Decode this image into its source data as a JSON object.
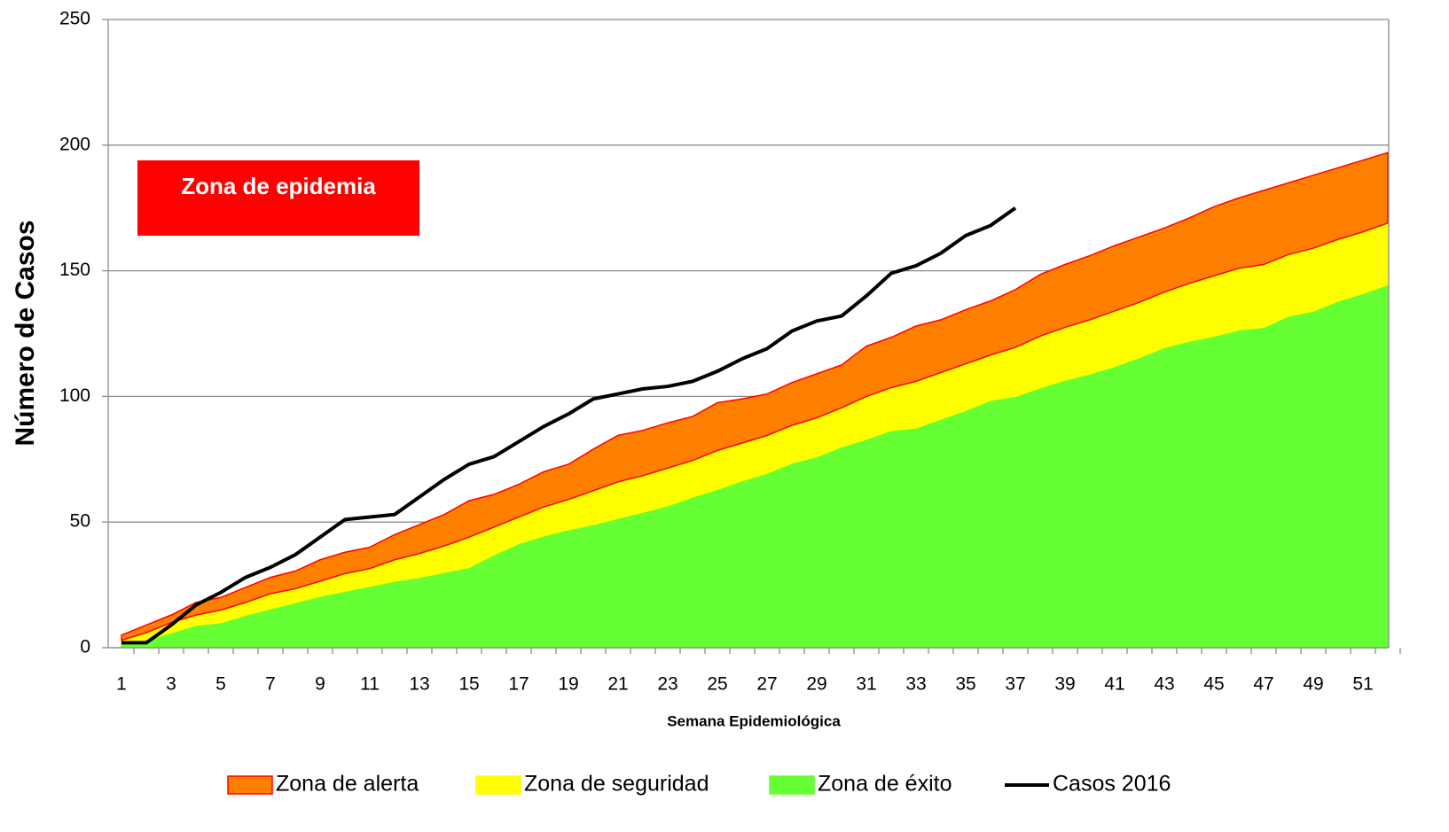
{
  "chart_data": {
    "type": "area",
    "stacked": true,
    "annotation": "Zona de epidemia",
    "annotation_color": "#ff0000",
    "xlabel": "Semana Epidemiológica",
    "ylabel": "Número de Casos",
    "ylim": [
      0,
      250
    ],
    "yticks": [
      0,
      50,
      100,
      150,
      200,
      250
    ],
    "grid": true,
    "legend": "bottom",
    "categories": [
      1,
      null,
      3,
      null,
      5,
      null,
      7,
      null,
      9,
      null,
      11,
      null,
      13,
      null,
      15,
      null,
      17,
      null,
      19,
      null,
      21,
      null,
      23,
      null,
      25,
      null,
      27,
      null,
      29,
      null,
      31,
      null,
      33,
      null,
      35,
      null,
      37,
      null,
      39,
      null,
      41,
      null,
      43,
      null,
      45,
      null,
      47,
      null,
      49,
      null,
      51,
      null
    ],
    "series": [
      {
        "name": "Zona de alerta",
        "type": "area",
        "color": "#ff8000",
        "edge": "#ff0000",
        "values": [
          2,
          3,
          3,
          5,
          5,
          6,
          6.5,
          7,
          8.5,
          8.5,
          8.5,
          10,
          11.5,
          12.5,
          14.5,
          13,
          13,
          14,
          14,
          16.5,
          18.5,
          18,
          18,
          17.5,
          19,
          17.5,
          16.5,
          17,
          17.5,
          17,
          20,
          20,
          22,
          21,
          21.5,
          21.5,
          23,
          24.5,
          25,
          25.5,
          26,
          26,
          25.5,
          26,
          27.5,
          28,
          29.5,
          28.5,
          29,
          28.5,
          28.5,
          28
        ]
      },
      {
        "name": "Zona de seguridad",
        "type": "area",
        "color": "#ffff00",
        "edge": "#ffff00",
        "values": [
          1,
          3,
          4,
          4,
          5,
          5,
          6,
          5.5,
          6,
          7,
          7,
          8.5,
          9.5,
          10.5,
          12,
          11,
          10.5,
          11.5,
          12,
          13.5,
          14.5,
          14.5,
          15,
          14.5,
          15.5,
          15,
          15,
          15,
          15.5,
          15.5,
          17,
          17,
          18.5,
          18.5,
          18.5,
          18,
          19.5,
          20.5,
          21,
          21.5,
          22,
          22,
          22,
          23,
          24,
          24.5,
          25,
          24.5,
          25,
          24.5,
          24.5,
          24.5
        ]
      },
      {
        "name": "Zona de éxito",
        "type": "area",
        "color": "#66ff33",
        "edge": "#66ff33",
        "values": [
          2,
          3,
          6,
          9,
          10,
          13,
          15.5,
          18,
          20.5,
          22.5,
          24.5,
          26.5,
          28,
          30,
          32,
          37,
          41.5,
          44.5,
          47,
          49,
          51.5,
          54,
          56.5,
          60,
          63,
          66.5,
          69.5,
          73.5,
          76,
          80,
          83,
          86.5,
          87.5,
          91,
          94.5,
          98.5,
          100,
          103.5,
          106.5,
          109,
          112,
          115.5,
          119.5,
          122,
          124,
          126.5,
          127.5,
          132,
          134,
          138,
          141,
          144.5
        ]
      },
      {
        "name": "Casos 2016",
        "type": "line",
        "color": "#000000",
        "values": [
          2,
          2,
          9,
          17,
          22,
          28,
          32,
          37,
          44,
          51,
          52,
          53,
          60,
          67,
          73,
          76,
          82,
          88,
          93,
          99,
          101,
          103,
          104,
          106,
          110,
          115,
          119,
          126,
          130,
          132,
          140,
          149,
          152,
          157,
          164,
          168,
          175,
          null,
          null,
          null,
          null,
          null,
          null,
          null,
          null,
          null,
          null,
          null,
          null,
          null,
          null,
          null
        ]
      }
    ]
  }
}
